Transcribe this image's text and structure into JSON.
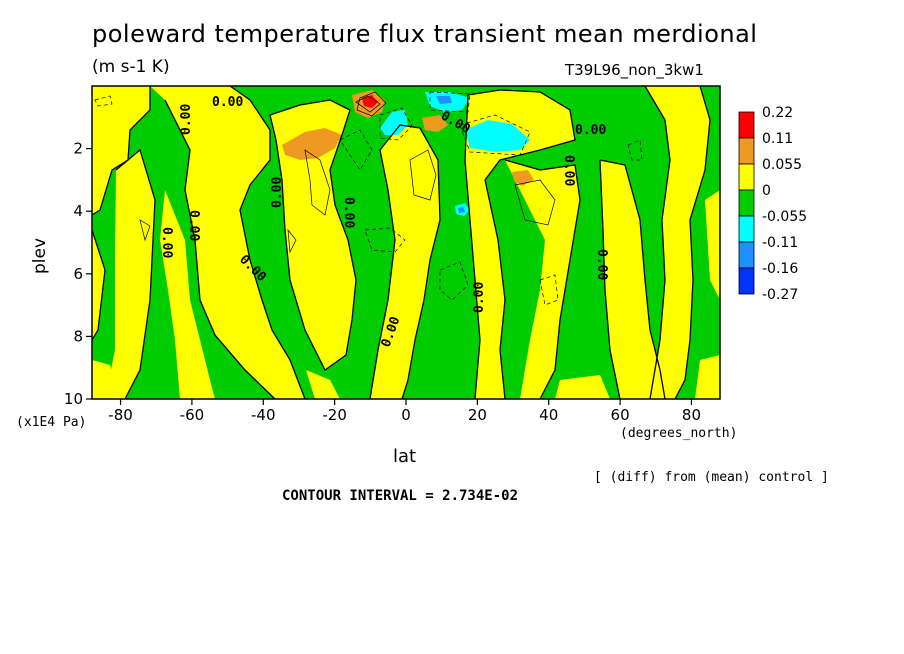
{
  "chart_data": {
    "type": "heatmap",
    "title": "poleward temperature flux transient mean merdional",
    "units": "(m s-1 K)",
    "run_label": "T39L96_non_3kw1",
    "xlabel": "lat",
    "x_units": "(degrees_north)",
    "ylabel": "plev",
    "y_units": "(x1E4 Pa)",
    "xlim": [
      -88,
      88
    ],
    "ylim": [
      10,
      0
    ],
    "x_ticks": [
      "-80",
      "-60",
      "-40",
      "-20",
      "0",
      "20",
      "40",
      "60",
      "80"
    ],
    "y_ticks": [
      "2",
      "4",
      "6",
      "8",
      "10"
    ],
    "colorbar": {
      "levels": [
        "0.22",
        "0.11",
        "0.055",
        "0",
        "-0.055",
        "-0.11",
        "-0.16",
        "-0.27"
      ],
      "colors": [
        "#ff0000",
        "#ee9a22",
        "#ffff00",
        "#00cc00",
        "#00ffff",
        "#1e90ff",
        "#0033ff"
      ]
    },
    "contour_labels": [
      "0.00"
    ],
    "note": "[ (diff) from (mean) control ]",
    "contour_interval": "CONTOUR INTERVAL = 2.734E-02"
  }
}
